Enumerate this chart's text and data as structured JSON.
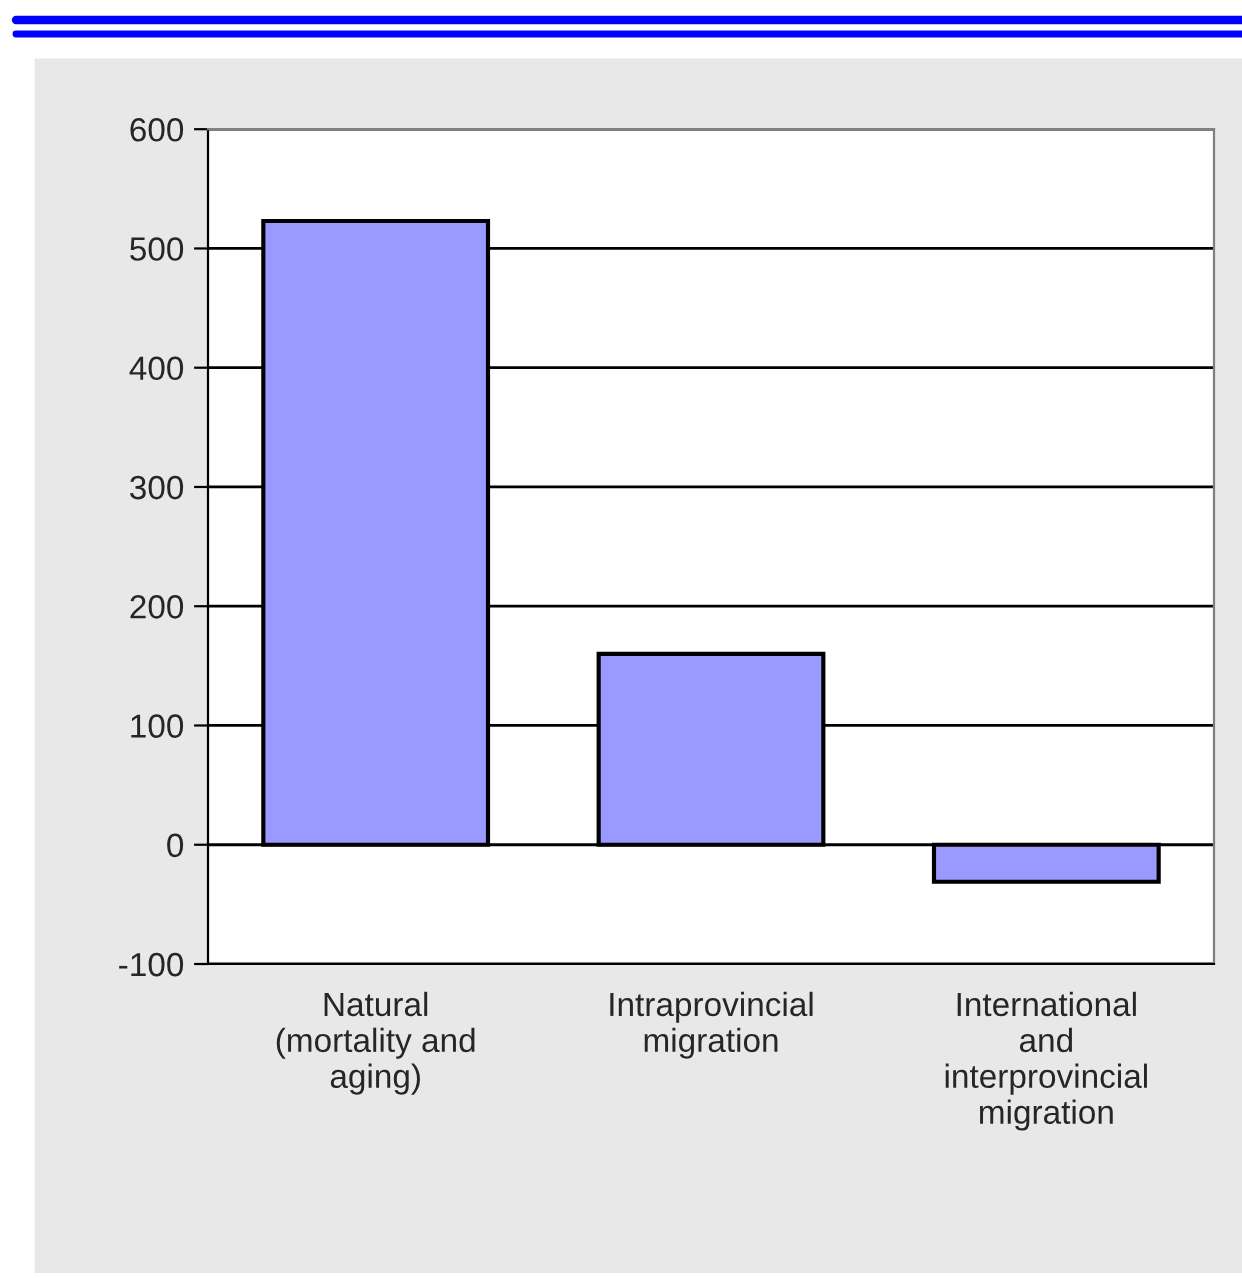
{
  "chart_data": {
    "type": "bar",
    "categories": [
      "Natural\n(mortality and\naging)",
      "Intraprovincial\nmigration",
      "International\nand\ninterprovincial\nmigration"
    ],
    "values": [
      523,
      160,
      -31
    ],
    "color": "#9999ff",
    "ylim": [
      -100,
      600
    ],
    "yticks": [
      {
        "value": -100,
        "label": "-100"
      },
      0,
      100,
      200,
      300,
      400,
      500,
      600
    ],
    "grid": "y",
    "legend": false
  }
}
